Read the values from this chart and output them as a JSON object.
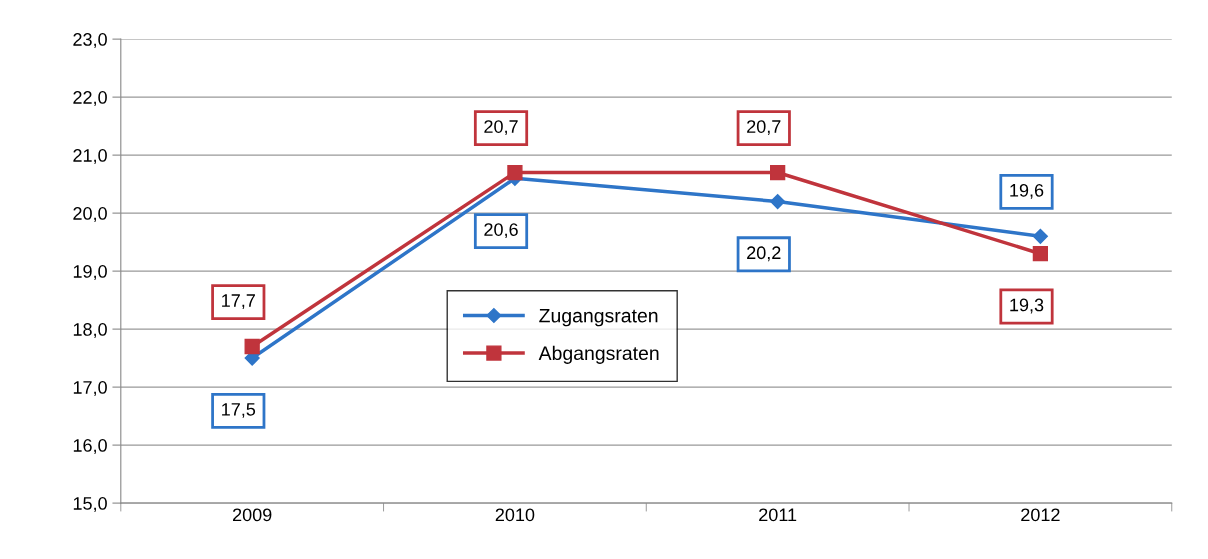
{
  "chart_data": {
    "type": "line",
    "categories": [
      "2009",
      "2010",
      "2011",
      "2012"
    ],
    "series": [
      {
        "name": "Zugangsraten",
        "color": "#2e75c8",
        "marker": "diamond",
        "values": [
          17.5,
          20.6,
          20.2,
          19.6
        ],
        "value_labels": [
          "17,5",
          "20,6",
          "20,2",
          "19,6"
        ]
      },
      {
        "name": "Abgangsraten",
        "color": "#c0343c",
        "marker": "square",
        "values": [
          17.7,
          20.7,
          20.7,
          19.3
        ],
        "value_labels": [
          "17,7",
          "20,7",
          "20,7",
          "19,3"
        ]
      }
    ],
    "ylim": [
      15,
      23
    ],
    "yticks": [
      {
        "value": 15,
        "label": "15,0"
      },
      {
        "value": 16,
        "label": "16,0"
      },
      {
        "value": 17,
        "label": "17,0"
      },
      {
        "value": 18,
        "label": "18,0"
      },
      {
        "value": 19,
        "label": "19,0"
      },
      {
        "value": 20,
        "label": "20,0"
      },
      {
        "value": 21,
        "label": "21,0"
      },
      {
        "value": 22,
        "label": "22,0"
      },
      {
        "value": 23,
        "label": "23,0"
      }
    ],
    "grid": "y",
    "legend": "center",
    "line_style": "solid"
  }
}
